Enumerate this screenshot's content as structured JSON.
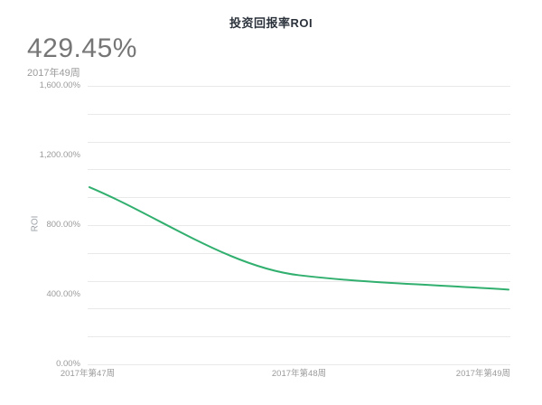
{
  "page": {
    "title": "投资回报率ROI",
    "background": "#ffffff"
  },
  "kpi": {
    "value": "429.45%",
    "period": "2017年49周"
  },
  "chart_data": {
    "type": "line",
    "title": "投资回报率ROI",
    "ylabel": "ROI",
    "xlabel": "",
    "categories": [
      "2017年第47周",
      "2017年第48周",
      "2017年第49周"
    ],
    "series": [
      {
        "name": "ROI",
        "values": [
          1018,
          512,
          429.45
        ]
      }
    ],
    "unit": "%",
    "ylim": [
      0,
      1600
    ],
    "y_ticks": [
      {
        "label": "0.00%",
        "value": 0
      },
      {
        "label": "400.00%",
        "value": 400
      },
      {
        "label": "800.00%",
        "value": 800
      },
      {
        "label": "1,200.00%",
        "value": 1200
      },
      {
        "label": "1,600.00%",
        "value": 1600
      }
    ],
    "grid_divisions": 10,
    "grid_on": true,
    "smooth": true,
    "legend_position": "none",
    "line_color": "#31af6e",
    "grid_color": "#e9e9e9",
    "tick_color": "#9b9b9b",
    "title_color": "#2b323b"
  }
}
